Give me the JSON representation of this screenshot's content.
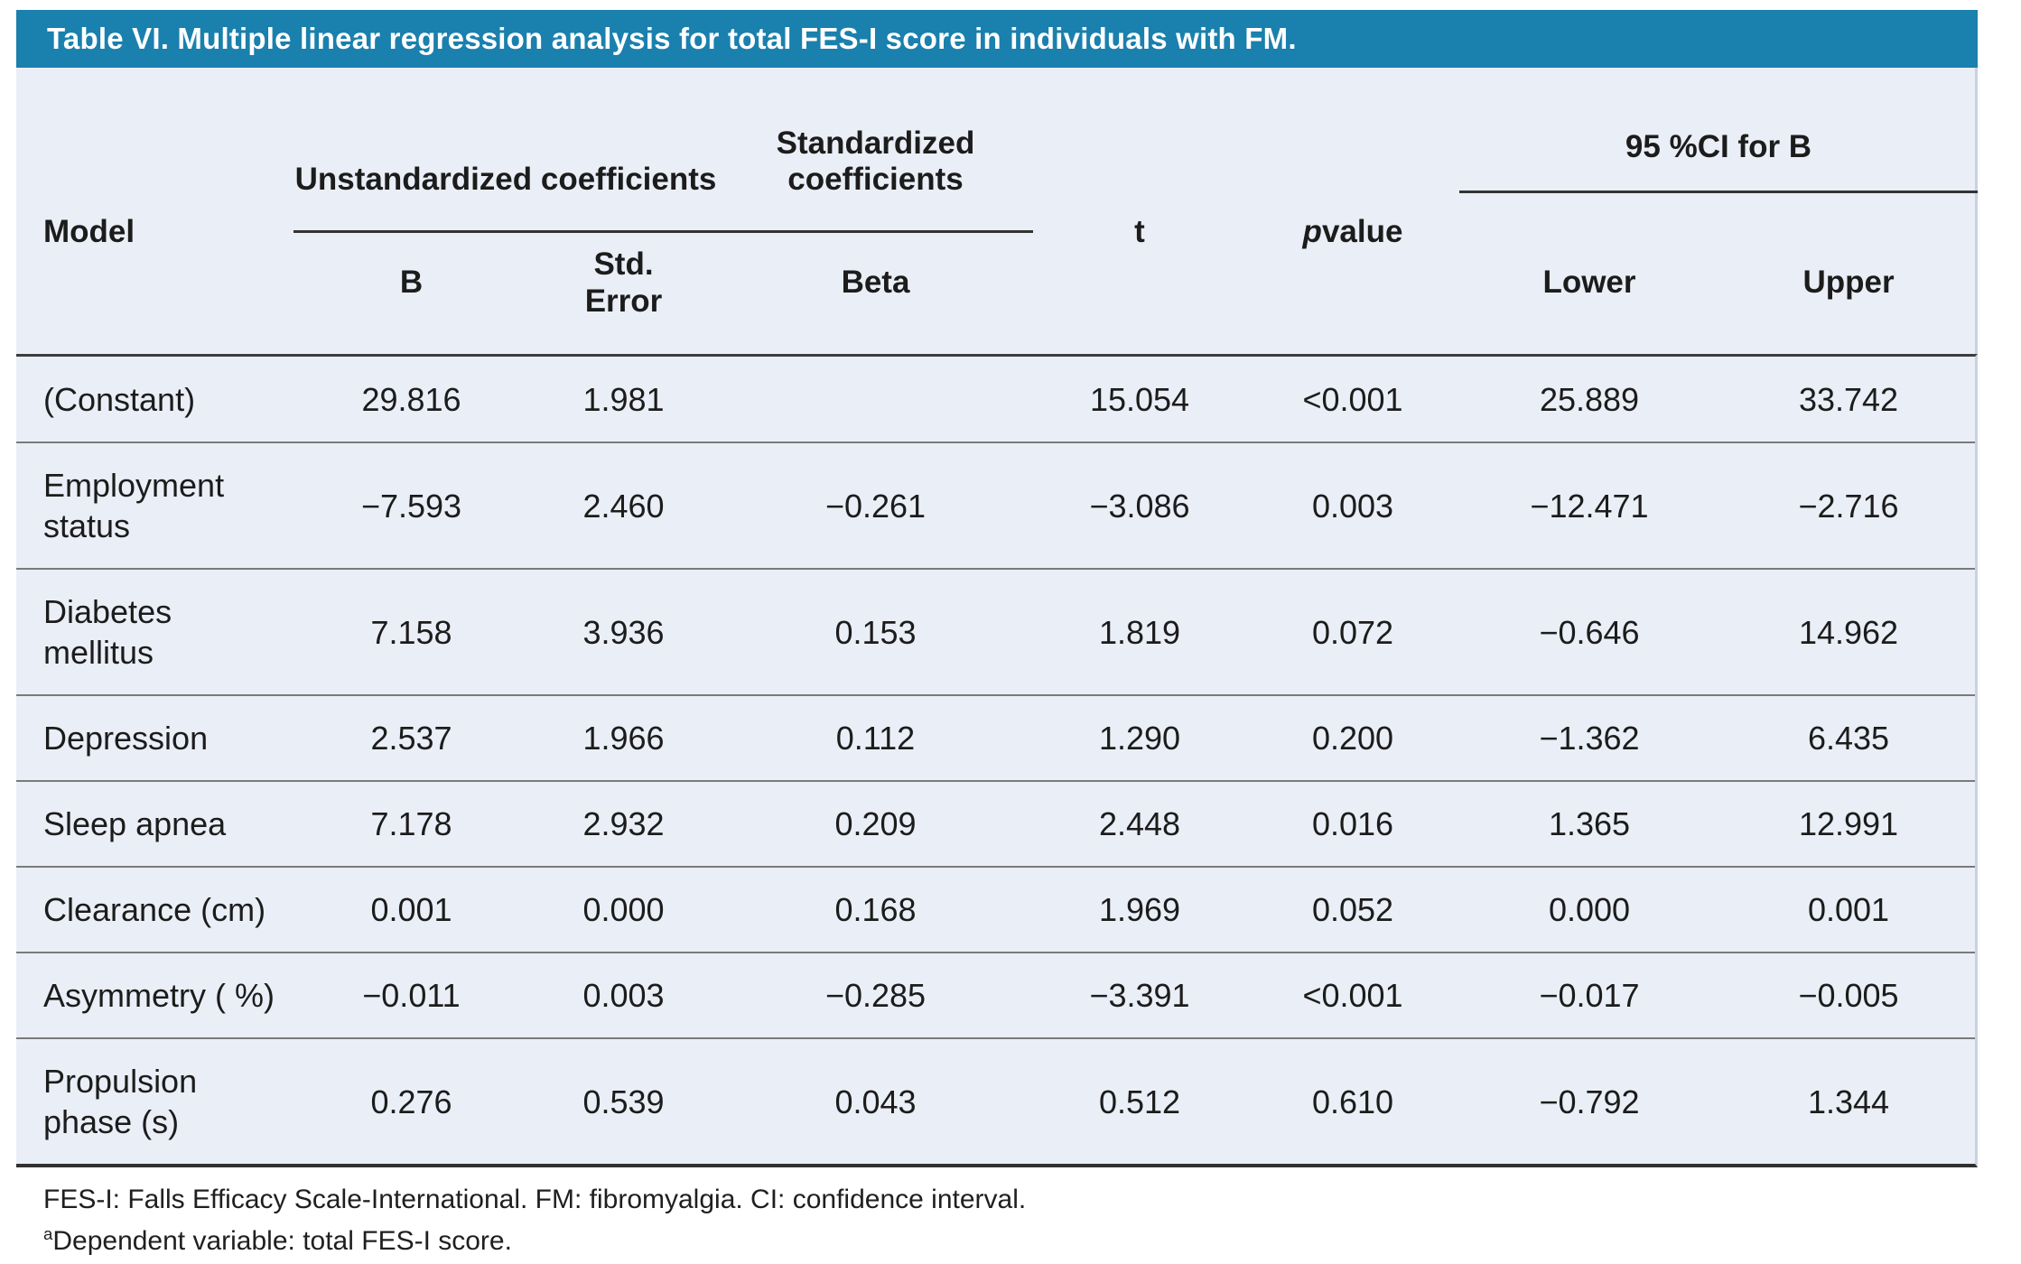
{
  "title": "Table VI. Multiple linear regression analysis for total FES-I score in individuals with FM.",
  "table": {
    "header": {
      "model": "Model",
      "group_unstandardized": "Unstandardized coefficients",
      "group_standardized": "Standardized coefficients",
      "t": "t",
      "p_italic": "p",
      "p_rest": " value",
      "group_ci": "95 %CI for B",
      "b": "B",
      "std_error": "Std.\nError",
      "beta": "Beta",
      "lower": "Lower",
      "upper": "Upper"
    },
    "row_keys": [
      "model",
      "b",
      "std_error",
      "beta",
      "t",
      "p",
      "lower",
      "upper"
    ],
    "rows": [
      {
        "model": "(Constant)",
        "b": "29.816",
        "std_error": "1.981",
        "beta": "",
        "t": "15.054",
        "p": "<0.001",
        "lower": "25.889",
        "upper": "33.742"
      },
      {
        "model": "Employment status",
        "b": "−7.593",
        "std_error": "2.460",
        "beta": "−0.261",
        "t": "−3.086",
        "p": "0.003",
        "lower": "−12.471",
        "upper": "−2.716"
      },
      {
        "model": "Diabetes mellitus",
        "b": "7.158",
        "std_error": "3.936",
        "beta": "0.153",
        "t": "1.819",
        "p": "0.072",
        "lower": "−0.646",
        "upper": "14.962"
      },
      {
        "model": "Depression",
        "b": "2.537",
        "std_error": "1.966",
        "beta": "0.112",
        "t": "1.290",
        "p": "0.200",
        "lower": "−1.362",
        "upper": "6.435"
      },
      {
        "model": "Sleep apnea",
        "b": "7.178",
        "std_error": "2.932",
        "beta": "0.209",
        "t": "2.448",
        "p": "0.016",
        "lower": "1.365",
        "upper": "12.991"
      },
      {
        "model": "Clearance (cm)",
        "b": "0.001",
        "std_error": "0.000",
        "beta": "0.168",
        "t": "1.969",
        "p": "0.052",
        "lower": "0.000",
        "upper": "0.001"
      },
      {
        "model": "Asymmetry ( %)",
        "b": "−0.011",
        "std_error": "0.003",
        "beta": "−0.285",
        "t": "−3.391",
        "p": "<0.001",
        "lower": "−0.017",
        "upper": "−0.005"
      },
      {
        "model": "Propulsion phase (s)",
        "b": "0.276",
        "std_error": "0.539",
        "beta": "0.043",
        "t": "0.512",
        "p": "0.610",
        "lower": "−0.792",
        "upper": "1.344"
      }
    ]
  },
  "footnotes": {
    "line1": "FES-I: Falls Efficacy Scale-International. FM: fibromyalgia. CI: confidence interval.",
    "line2_sup": "a",
    "line2": "Dependent variable: total FES-I score."
  },
  "colors": {
    "header_bar": "#1a80ad",
    "table_bg": "#eaeef6"
  }
}
